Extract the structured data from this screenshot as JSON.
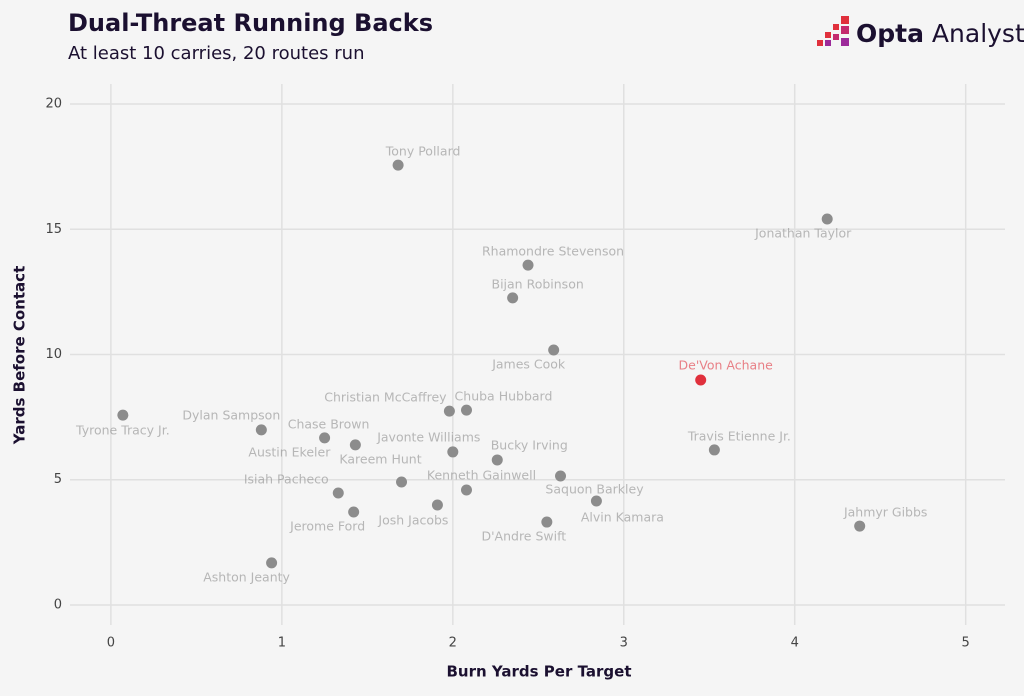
{
  "chart_data": {
    "type": "scatter",
    "title": "Dual-Threat Running Backs",
    "subtitle": "At least 10 carries, 20 routes run",
    "logo": {
      "brand": "Opta",
      "product": "Analyst"
    },
    "x_label": "Burn Yards Per Target",
    "y_label": "Yards Before Contact",
    "labels": [
      "Tony Pollard",
      "Jonathan Taylor",
      "Rhamondre Stevenson",
      "Bijan Robinson",
      "James Cook",
      "De'Von Achane",
      "Tyrone Tracy Jr.",
      "Christian McCaffrey",
      "Chuba Hubbard",
      "Dylan Sampson",
      "Chase Brown",
      "Austin Ekeler",
      "Javonte Williams",
      "Bucky Irving",
      "Travis Etienne Jr.",
      "Kareem Hunt",
      "Kenneth Gainwell",
      "Saquon Barkley",
      "Alvin Kamara",
      "Isiah Pacheco",
      "Jerome Ford",
      "Josh Jacobs",
      "D'Andre Swift",
      "Jahmyr Gibbs",
      "Ashton Jeanty"
    ],
    "x": [
      1.68,
      4.19,
      2.44,
      2.35,
      2.59,
      3.45,
      0.07,
      1.98,
      2.08,
      0.88,
      1.25,
      1.43,
      2.0,
      2.26,
      3.53,
      1.7,
      2.08,
      2.63,
      2.84,
      1.33,
      1.42,
      1.91,
      2.55,
      4.38,
      0.94
    ],
    "values": [
      17.56,
      15.41,
      13.57,
      12.26,
      10.18,
      8.98,
      7.58,
      7.74,
      7.78,
      6.99,
      6.67,
      6.39,
      6.11,
      5.79,
      6.19,
      4.91,
      4.59,
      5.15,
      4.15,
      4.47,
      3.71,
      3.99,
      3.31,
      3.15,
      1.68
    ],
    "point_colors": [
      "#8c8c8c",
      "#8c8c8c",
      "#8c8c8c",
      "#8c8c8c",
      "#8c8c8c",
      "#e0303c",
      "#8c8c8c",
      "#8c8c8c",
      "#8c8c8c",
      "#8c8c8c",
      "#8c8c8c",
      "#8c8c8c",
      "#8c8c8c",
      "#8c8c8c",
      "#8c8c8c",
      "#8c8c8c",
      "#8c8c8c",
      "#8c8c8c",
      "#8c8c8c",
      "#8c8c8c",
      "#8c8c8c",
      "#8c8c8c",
      "#8c8c8c",
      "#8c8c8c",
      "#8c8c8c"
    ],
    "xlim": [
      -0.21,
      5.23
    ],
    "ylim": [
      -0.8,
      20.8
    ],
    "xticks": [
      0,
      1,
      2,
      3,
      4,
      5
    ],
    "yticks": [
      0,
      5,
      10,
      15,
      20
    ],
    "grid": true
  }
}
